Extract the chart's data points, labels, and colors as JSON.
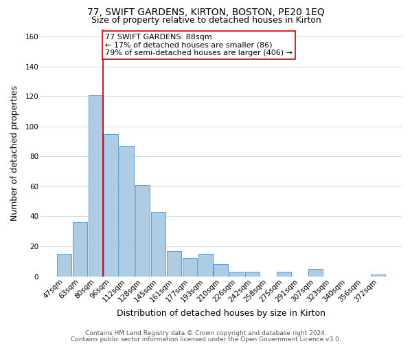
{
  "title": "77, SWIFT GARDENS, KIRTON, BOSTON, PE20 1EQ",
  "subtitle": "Size of property relative to detached houses in Kirton",
  "xlabel": "Distribution of detached houses by size in Kirton",
  "ylabel": "Number of detached properties",
  "bin_labels": [
    "47sqm",
    "63sqm",
    "80sqm",
    "96sqm",
    "112sqm",
    "128sqm",
    "145sqm",
    "161sqm",
    "177sqm",
    "193sqm",
    "210sqm",
    "226sqm",
    "242sqm",
    "258sqm",
    "275sqm",
    "291sqm",
    "307sqm",
    "323sqm",
    "340sqm",
    "356sqm",
    "372sqm"
  ],
  "bar_heights": [
    15,
    36,
    121,
    95,
    87,
    61,
    43,
    17,
    12,
    15,
    8,
    3,
    3,
    0,
    3,
    0,
    5,
    0,
    0,
    0,
    1
  ],
  "bar_color": "#aecce4",
  "bar_edge_color": "#5b9bd5",
  "red_line_color": "#cc0000",
  "annotation_text_line1": "77 SWIFT GARDENS: 88sqm",
  "annotation_text_line2": "← 17% of detached houses are smaller (86)",
  "annotation_text_line3": "79% of semi-detached houses are larger (406) →",
  "annotation_box_color": "#ffffff",
  "annotation_box_edge_color": "#cc0000",
  "ylim": [
    0,
    165
  ],
  "yticks": [
    0,
    20,
    40,
    60,
    80,
    100,
    120,
    140,
    160
  ],
  "footer_line1": "Contains HM Land Registry data © Crown copyright and database right 2024.",
  "footer_line2": "Contains public sector information licensed under the Open Government Licence v3.0.",
  "background_color": "#ffffff",
  "grid_color": "#d0dce8",
  "title_fontsize": 10,
  "subtitle_fontsize": 9,
  "axis_label_fontsize": 9,
  "tick_fontsize": 7.5,
  "annotation_fontsize": 8,
  "footer_fontsize": 6.5
}
